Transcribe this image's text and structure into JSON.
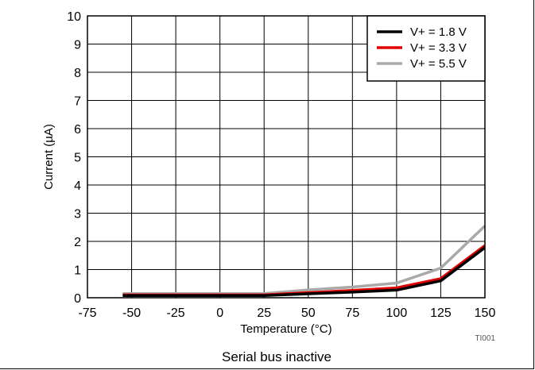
{
  "chart_data": {
    "type": "line",
    "caption": "Serial bus inactive",
    "figure_id": "TI001",
    "xlabel": "Temperature (°C)",
    "ylabel": "Current (µA)",
    "xlim": [
      -75,
      150
    ],
    "ylim": [
      0,
      10
    ],
    "x_ticks": [
      -75,
      -50,
      -25,
      0,
      25,
      50,
      75,
      100,
      125,
      150
    ],
    "y_ticks": [
      0,
      1,
      2,
      3,
      4,
      5,
      6,
      7,
      8,
      9,
      10
    ],
    "grid": true,
    "legend_position": "top-right",
    "series": [
      {
        "name": "V+ = 5.5 V",
        "color": "#a9a9a9",
        "x": [
          -55,
          -25,
          0,
          25,
          50,
          75,
          100,
          125,
          150
        ],
        "y": [
          0.15,
          0.15,
          0.15,
          0.15,
          0.28,
          0.38,
          0.52,
          1.05,
          2.55
        ]
      },
      {
        "name": "V+ = 3.3 V",
        "color": "#e00000",
        "x": [
          -55,
          -25,
          0,
          25,
          50,
          75,
          100,
          125,
          150
        ],
        "y": [
          0.1,
          0.1,
          0.1,
          0.1,
          0.18,
          0.26,
          0.35,
          0.68,
          1.85
        ]
      },
      {
        "name": "V+ = 1.8 V",
        "color": "#000000",
        "x": [
          -55,
          -25,
          0,
          25,
          50,
          75,
          100,
          125,
          150
        ],
        "y": [
          0.08,
          0.08,
          0.08,
          0.08,
          0.14,
          0.2,
          0.27,
          0.6,
          1.78
        ]
      }
    ],
    "legend_order": [
      2,
      1,
      0
    ]
  }
}
